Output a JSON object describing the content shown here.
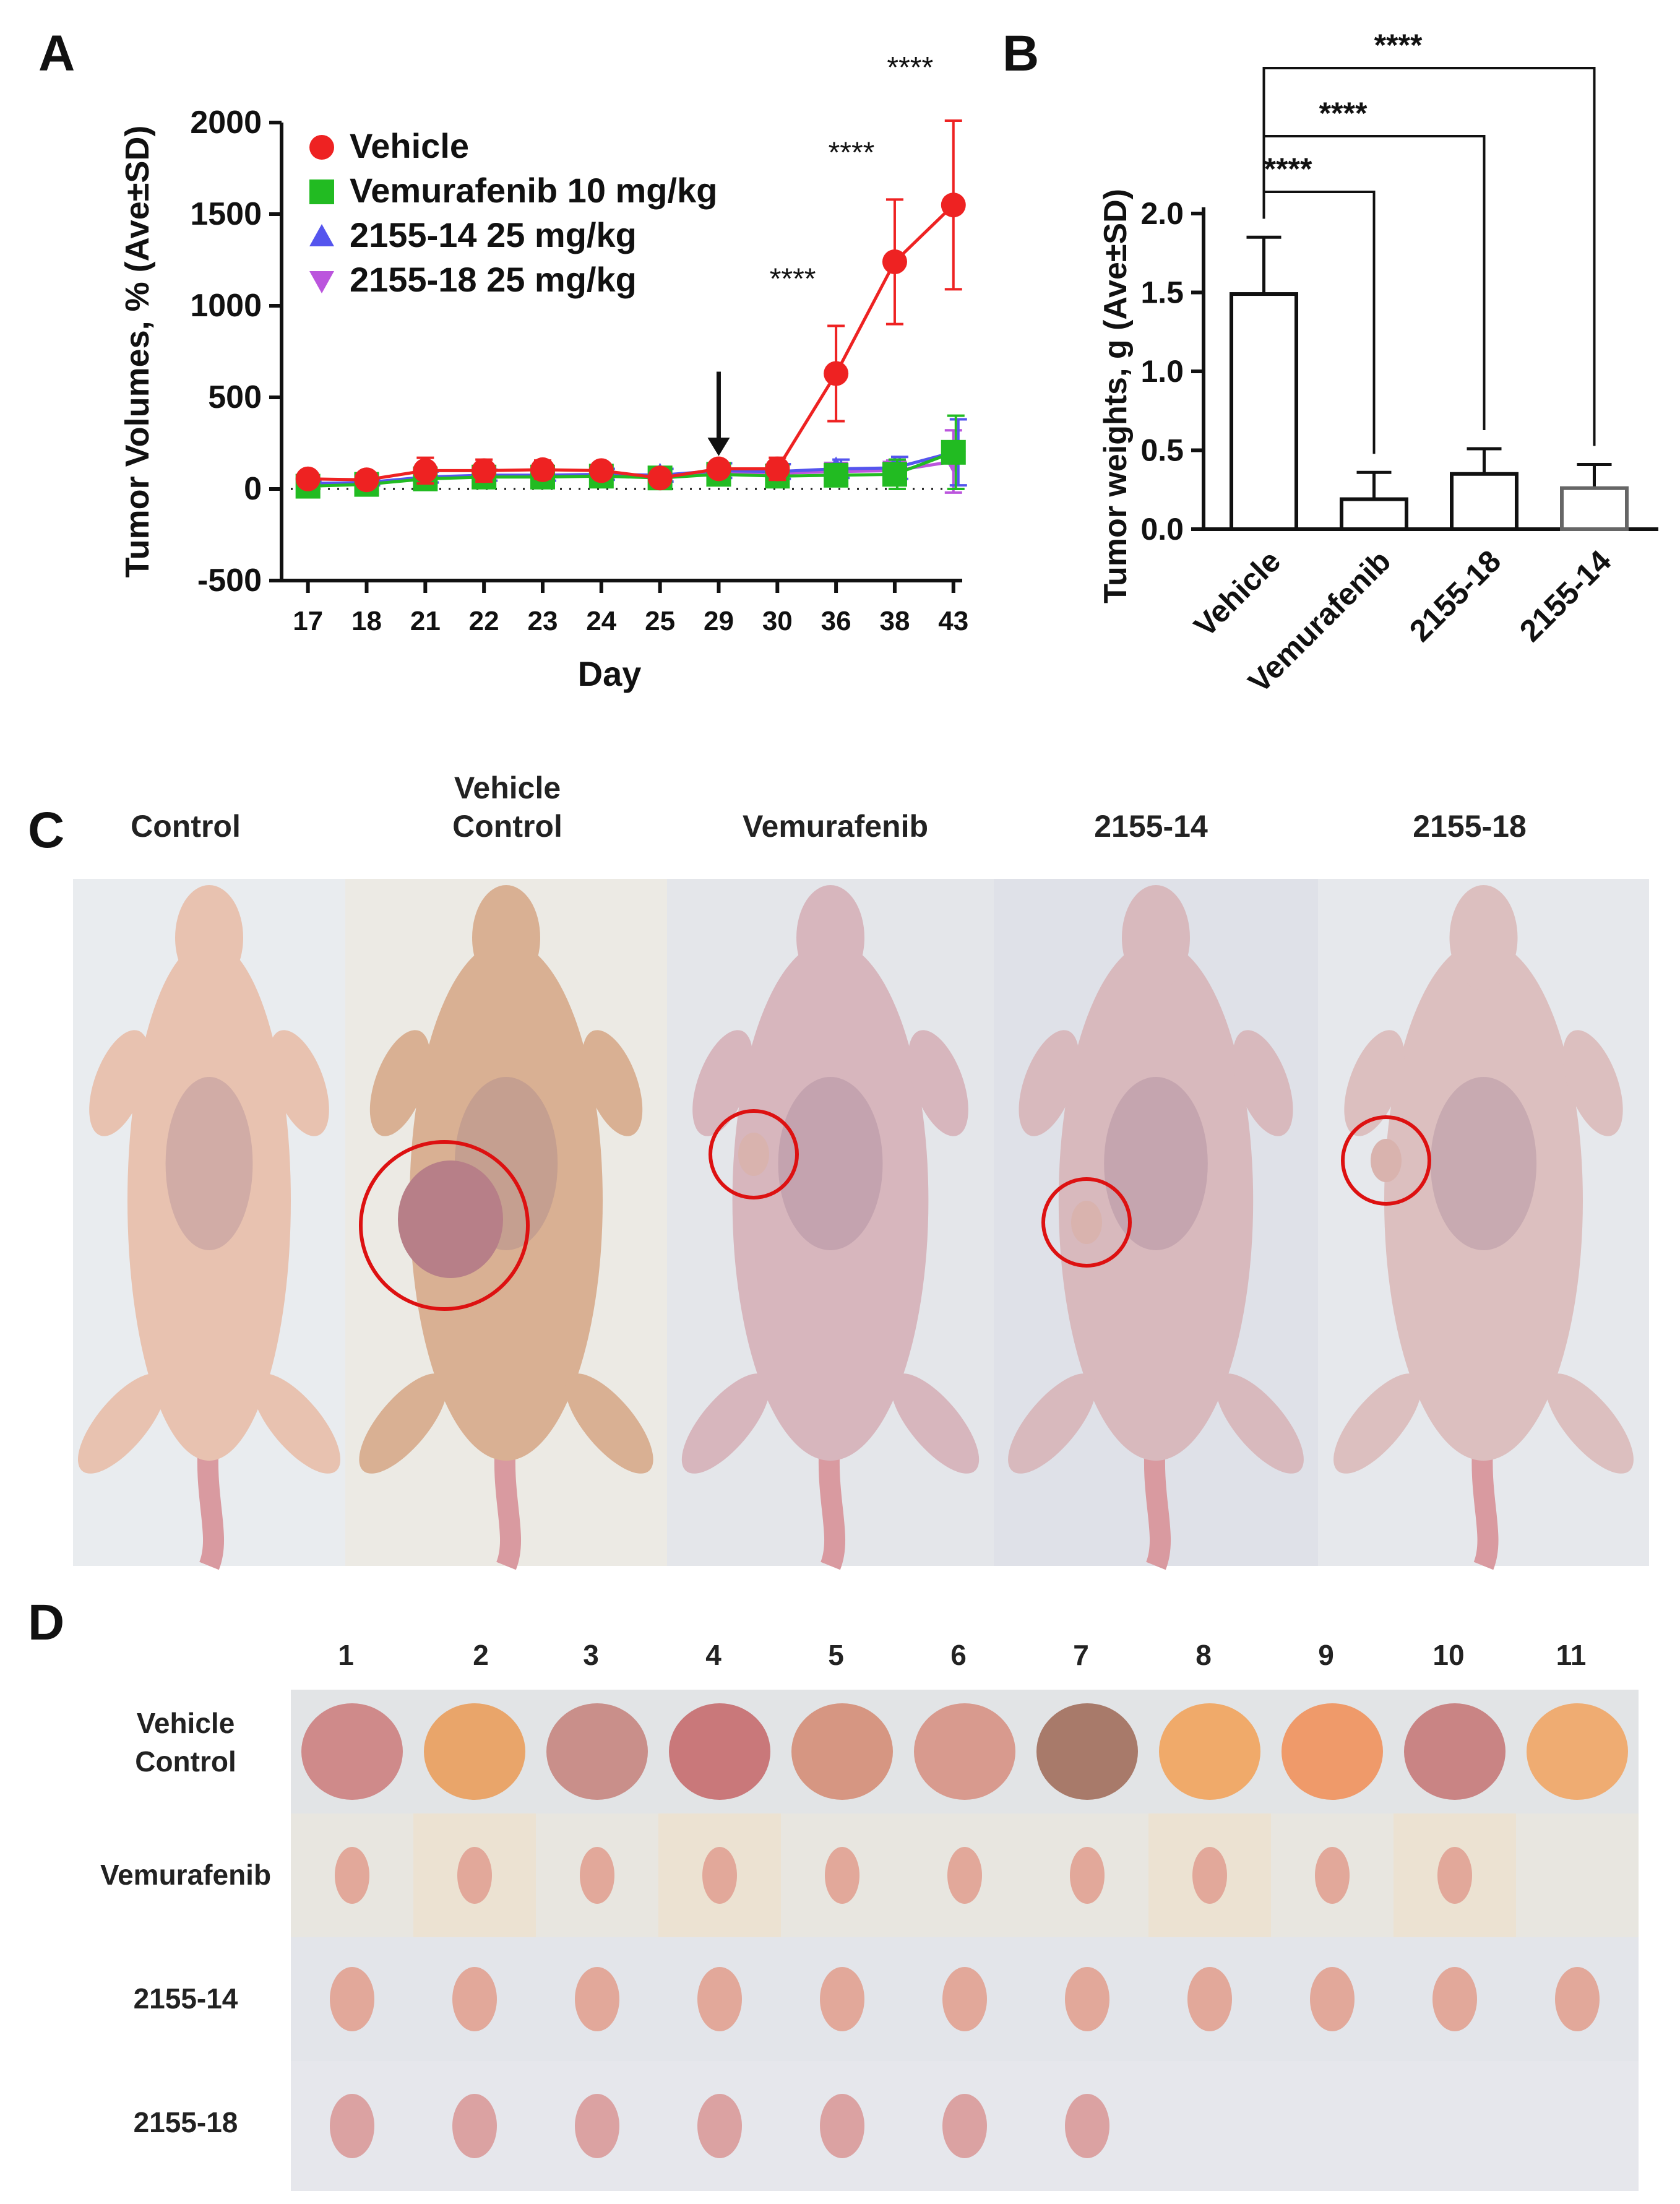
{
  "panels": {
    "a": "A",
    "b": "B",
    "c": "C",
    "d": "D"
  },
  "colors": {
    "vehicle": "#ee2222",
    "vemurafenib": "#22bb22",
    "c2155_14": "#5555ee",
    "c2155_18": "#bb55dd",
    "axis": "#111111",
    "circle": "#dd1111"
  },
  "chart_data": [
    {
      "panel": "A",
      "type": "line",
      "title": "",
      "xlabel": "Day",
      "ylabel": "Tumor Volumes, % (Ave±SD)",
      "categories": [
        "17",
        "18",
        "21",
        "22",
        "23",
        "24",
        "25",
        "29",
        "30",
        "36",
        "38",
        "43"
      ],
      "ylim": [
        -500,
        2000
      ],
      "yticks": [
        "-500",
        "0",
        "500",
        "1000",
        "1500",
        "2000"
      ],
      "legend_position": "top-left",
      "series": [
        {
          "name": "Vehicle",
          "marker": "circle",
          "color": "#ee2222",
          "values": [
            55,
            50,
            100,
            100,
            105,
            100,
            60,
            110,
            110,
            630,
            1240,
            1550
          ],
          "sd": [
            25,
            25,
            70,
            60,
            50,
            35,
            35,
            40,
            60,
            260,
            340,
            460
          ]
        },
        {
          "name": "Vemurafenib 10 mg/kg",
          "marker": "square",
          "color": "#22bb22",
          "values": [
            15,
            25,
            55,
            65,
            65,
            70,
            60,
            80,
            70,
            75,
            80,
            200
          ],
          "sd": [
            15,
            15,
            30,
            30,
            30,
            30,
            30,
            35,
            40,
            60,
            80,
            200
          ]
        },
        {
          "name": "2155-14 25 mg/kg",
          "marker": "triangle-up",
          "color": "#5555ee",
          "values": [
            30,
            35,
            65,
            75,
            75,
            80,
            75,
            100,
            95,
            110,
            115,
            200
          ],
          "sd": [
            15,
            15,
            30,
            30,
            30,
            30,
            35,
            40,
            40,
            50,
            60,
            180
          ]
        },
        {
          "name": "2155-18 25 mg/kg",
          "marker": "triangle-down",
          "color": "#bb55dd",
          "values": [
            25,
            30,
            60,
            70,
            70,
            75,
            70,
            90,
            85,
            95,
            100,
            150
          ],
          "sd": [
            15,
            15,
            30,
            30,
            30,
            30,
            30,
            35,
            35,
            45,
            55,
            170
          ]
        }
      ],
      "annotations": [
        {
          "text": "****",
          "x": "36"
        },
        {
          "text": "****",
          "x": "38"
        },
        {
          "text": "****",
          "x": "43"
        },
        {
          "text": "↓",
          "x": "29",
          "label": "treatment start arrow"
        }
      ]
    },
    {
      "panel": "B",
      "type": "bar",
      "title": "",
      "xlabel": "",
      "ylabel": "Tumor weights, g (Ave±SD)",
      "categories": [
        "Vehicle",
        "Vemurafenib",
        "2155-18",
        "2155-14"
      ],
      "values": [
        1.49,
        0.19,
        0.35,
        0.26
      ],
      "sd": [
        0.36,
        0.17,
        0.16,
        0.15
      ],
      "ylim": [
        0,
        2.0
      ],
      "yticks": [
        "0.0",
        "0.5",
        "1.0",
        "1.5",
        "2.0"
      ],
      "significance": [
        {
          "from": "Vehicle",
          "to": "Vemurafenib",
          "text": "****"
        },
        {
          "from": "Vehicle",
          "to": "2155-18",
          "text": "****"
        },
        {
          "from": "Vehicle",
          "to": "2155-14",
          "text": "****"
        }
      ]
    }
  ],
  "panel_c": {
    "labels": [
      "Control",
      "Vehicle\nControl",
      "Vemurafenib",
      "2155-14",
      "2155-18"
    ]
  },
  "panel_d": {
    "columns": [
      "1",
      "2",
      "3",
      "4",
      "5",
      "6",
      "7",
      "8",
      "9",
      "10",
      "11"
    ],
    "rows": [
      {
        "label": "Vehicle\nControl",
        "count": 11
      },
      {
        "label": "Vemurafenib",
        "count": 10
      },
      {
        "label": "2155-14",
        "count": 11
      },
      {
        "label": "2155-18",
        "count": 7
      }
    ]
  }
}
